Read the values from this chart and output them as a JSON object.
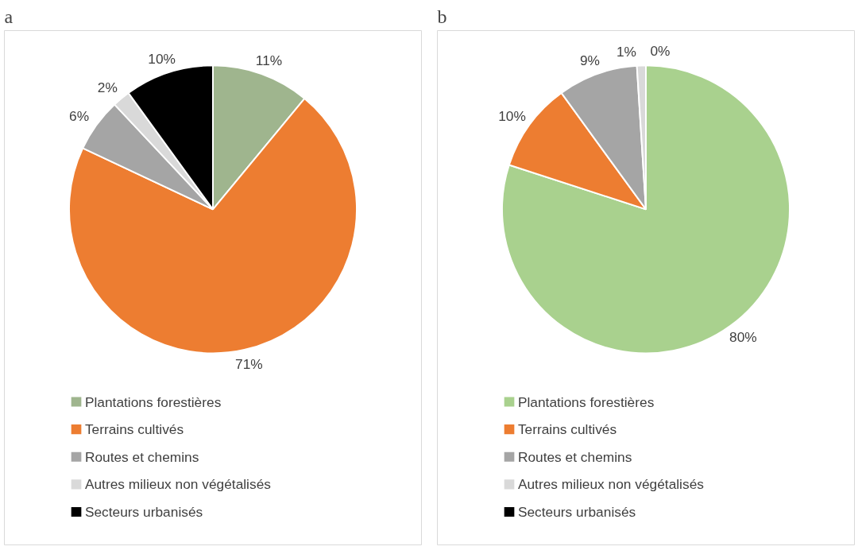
{
  "chart_data": [
    {
      "type": "pie",
      "title": "a",
      "categories": [
        "Plantations forestières",
        "Terrains cultivés",
        "Routes et chemins",
        "Autres milieux non végétalisés",
        "Secteurs urbanisés"
      ],
      "values": [
        11,
        71,
        6,
        2,
        10
      ],
      "value_labels": [
        "11%",
        "71%",
        "6%",
        "2%",
        "10%"
      ],
      "colors": [
        "#9fb58e",
        "#ed7d31",
        "#a5a5a5",
        "#d9d9d9",
        "#000000"
      ],
      "legend": "bottom"
    },
    {
      "type": "pie",
      "title": "b",
      "categories": [
        "Plantations forestières",
        "Terrains cultivés",
        "Routes et chemins",
        "Autres milieux non végétalisés",
        "Secteurs urbanisés"
      ],
      "values": [
        80,
        10,
        9,
        1,
        0
      ],
      "value_labels": [
        "80%",
        "10%",
        "9%",
        "1%",
        "0%"
      ],
      "colors": [
        "#a9d18e",
        "#ed7d31",
        "#a5a5a5",
        "#d9d9d9",
        "#000000"
      ],
      "legend": "bottom"
    }
  ]
}
